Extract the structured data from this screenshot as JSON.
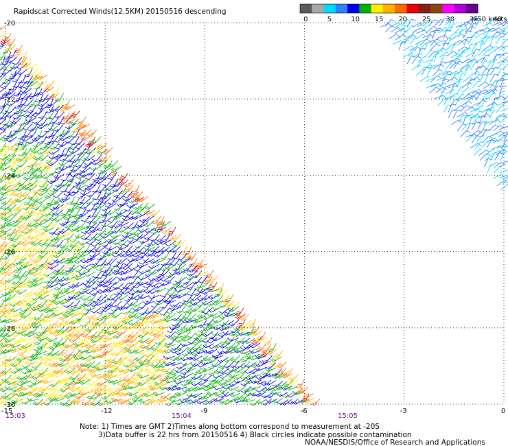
{
  "chart_data": {
    "type": "wind-barb-map",
    "title": "Rapidscat Corrected Winds(12.5KM) 20150516 descending",
    "x_ticks": [
      "-15",
      "-12",
      "-9",
      "-6",
      "-3",
      "0"
    ],
    "x_tick_values": [
      -15,
      -12,
      -9,
      -6,
      -3,
      0
    ],
    "y_ticks": [
      "-20",
      "-22",
      "-24",
      "-26",
      "-28",
      "-30"
    ],
    "y_tick_values": [
      -20,
      -22,
      -24,
      -26,
      -28,
      -30
    ],
    "xlim": [
      -15,
      0
    ],
    "ylim": [
      -30,
      -20
    ],
    "grid": true,
    "time_labels": [
      {
        "text": "15:03",
        "lon": -15
      },
      {
        "text": "15:04",
        "lon": -10
      },
      {
        "text": "15:05",
        "lon": -5
      }
    ],
    "legend": {
      "placement": "top-right",
      "unit_label": ">50 knots",
      "tick_labels": [
        "0",
        "5",
        "10",
        "15",
        "20",
        "25",
        "30",
        "35",
        "40",
        "45"
      ],
      "colors": [
        "#5a5a5a",
        "#a8a8a8",
        "#00d8ff",
        "#2f7fff",
        "#0000ee",
        "#00b000",
        "#ffee00",
        "#ffb000",
        "#ff6a00",
        "#ee0000",
        "#8b1a1a",
        "#8b4513",
        "#ff00ff",
        "#b000d8",
        "#6a0090"
      ]
    },
    "swaths": [
      {
        "region": "main swath, west of diagonal edge from (-15,-20) to (-5.3,-30)",
        "dominant_speed_knots": "10-25"
      },
      {
        "region": "secondary swath, northeast corner from (-3.8,-20) to (0,-24.5)",
        "dominant_speed_knots": "5-10"
      }
    ],
    "notes": [
      "Note: 1) Times are GMT 2)Times along bottom correspond to measurement at -20S",
      "3)Data buffer is 22 hrs from 20150516 4) Black circles indicate possible contamination"
    ],
    "credit": "NOAA/NESDIS/Office of Research and Applications"
  }
}
